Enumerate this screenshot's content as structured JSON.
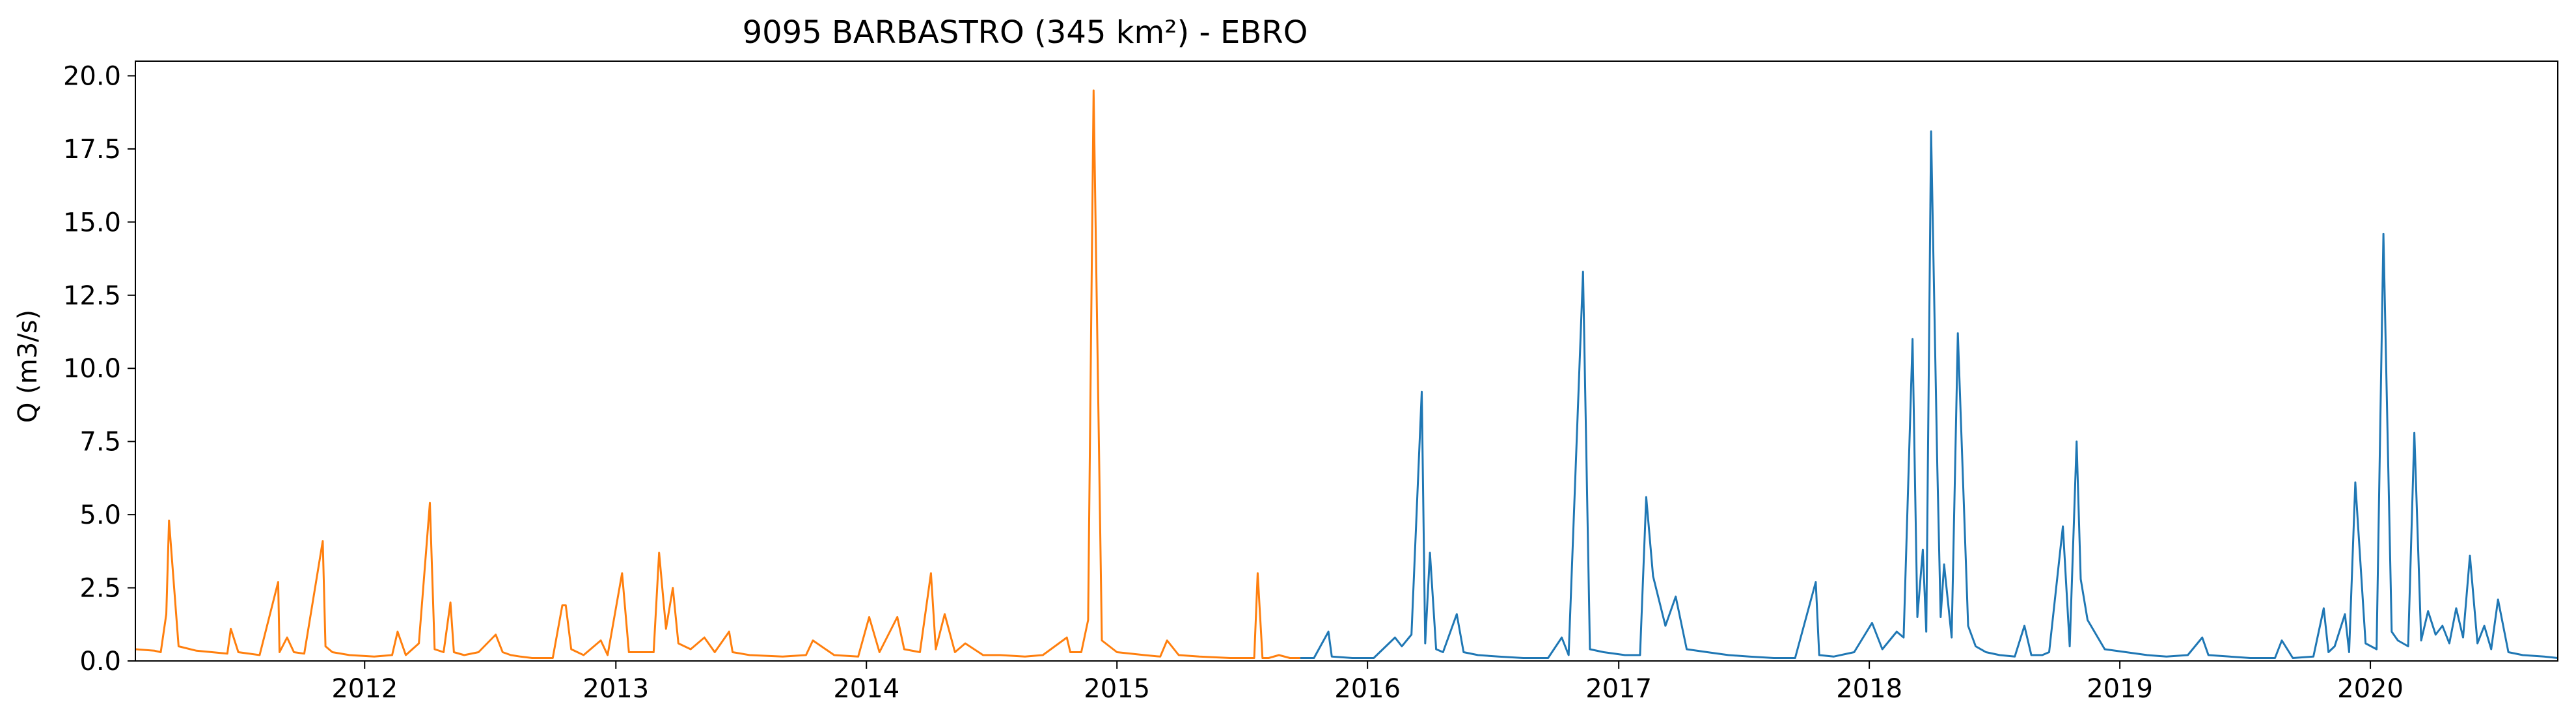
{
  "chart_data": {
    "type": "line",
    "title": "9095 BARBASTRO (345 km²) - EBRO",
    "xlabel": "",
    "ylabel": "Q (m3/s)",
    "xlim": [
      "2011-02-01",
      "2020-09-30"
    ],
    "ylim": [
      0,
      20.5
    ],
    "grid": false,
    "legend": "none",
    "x_ticks": [
      "2012",
      "2013",
      "2014",
      "2015",
      "2016",
      "2017",
      "2018",
      "2019",
      "2020"
    ],
    "y_ticks": [
      "0.0",
      "2.5",
      "5.0",
      "7.5",
      "10.0",
      "12.5",
      "15.0",
      "17.5",
      "20.0"
    ],
    "series": [
      {
        "color": "#ff7f0e",
        "x": [
          "2011-02-01",
          "2011-03-01",
          "2011-03-10",
          "2011-03-18",
          "2011-03-22",
          "2011-04-05",
          "2011-05-01",
          "2011-06-15",
          "2011-06-20",
          "2011-07-01",
          "2011-08-01",
          "2011-08-28",
          "2011-08-30",
          "2011-09-10",
          "2011-09-20",
          "2011-10-05",
          "2011-11-01",
          "2011-11-05",
          "2011-11-15",
          "2011-12-10",
          "2012-01-15",
          "2012-02-10",
          "2012-02-18",
          "2012-03-01",
          "2012-03-20",
          "2012-04-05",
          "2012-04-12",
          "2012-04-25",
          "2012-05-05",
          "2012-05-10",
          "2012-05-25",
          "2012-06-15",
          "2012-07-10",
          "2012-07-20",
          "2012-08-01",
          "2012-08-15",
          "2012-09-01",
          "2012-10-01",
          "2012-10-15",
          "2012-10-20",
          "2012-10-28",
          "2012-11-15",
          "2012-12-10",
          "2012-12-20",
          "2013-01-10",
          "2013-01-20",
          "2013-02-10",
          "2013-02-25",
          "2013-03-05",
          "2013-03-15",
          "2013-03-25",
          "2013-04-02",
          "2013-04-20",
          "2013-05-10",
          "2013-05-25",
          "2013-06-15",
          "2013-06-20",
          "2013-07-15",
          "2013-09-01",
          "2013-10-05",
          "2013-10-15",
          "2013-11-15",
          "2013-12-20",
          "2014-01-05",
          "2014-01-20",
          "2014-02-15",
          "2014-02-25",
          "2014-03-20",
          "2014-04-05",
          "2014-04-12",
          "2014-04-25",
          "2014-05-10",
          "2014-05-25",
          "2014-06-20",
          "2014-07-15",
          "2014-08-20",
          "2014-09-15",
          "2014-10-20",
          "2014-10-25",
          "2014-11-10",
          "2014-11-20",
          "2014-11-28",
          "2014-12-10",
          "2015-01-01",
          "2015-02-10",
          "2015-03-05",
          "2015-03-15",
          "2015-04-01",
          "2015-05-01",
          "2015-06-15",
          "2015-07-20",
          "2015-07-25",
          "2015-08-01",
          "2015-08-10",
          "2015-08-25",
          "2015-09-10",
          "2015-09-25"
        ],
        "y": [
          0.4,
          0.35,
          0.3,
          1.6,
          4.8,
          0.5,
          0.35,
          0.25,
          1.1,
          0.3,
          0.2,
          2.7,
          0.3,
          0.8,
          0.3,
          0.25,
          4.1,
          0.5,
          0.3,
          0.2,
          0.15,
          0.2,
          1.0,
          0.2,
          0.6,
          5.4,
          0.4,
          0.3,
          2.0,
          0.3,
          0.2,
          0.3,
          0.9,
          0.3,
          0.2,
          0.15,
          0.1,
          0.1,
          1.9,
          1.9,
          0.4,
          0.2,
          0.7,
          0.2,
          3.0,
          0.3,
          0.3,
          0.3,
          3.7,
          1.1,
          2.5,
          0.6,
          0.4,
          0.8,
          0.3,
          1.0,
          0.3,
          0.2,
          0.15,
          0.2,
          0.7,
          0.2,
          0.15,
          1.5,
          0.3,
          1.5,
          0.4,
          0.3,
          3.0,
          0.4,
          1.6,
          0.3,
          0.6,
          0.2,
          0.2,
          0.15,
          0.2,
          0.8,
          0.3,
          0.3,
          1.4,
          19.5,
          0.7,
          0.3,
          0.2,
          0.15,
          0.7,
          0.2,
          0.15,
          0.1,
          0.1,
          3.0,
          0.1,
          0.1,
          0.2,
          0.1,
          0.1
        ]
      },
      {
        "color": "#1f77b4",
        "x": [
          "2015-09-25",
          "2015-10-15",
          "2015-11-05",
          "2015-11-10",
          "2015-12-10",
          "2016-01-10",
          "2016-02-10",
          "2016-02-20",
          "2016-03-05",
          "2016-03-20",
          "2016-03-25",
          "2016-04-01",
          "2016-04-10",
          "2016-04-20",
          "2016-05-10",
          "2016-05-20",
          "2016-06-10",
          "2016-07-10",
          "2016-08-15",
          "2016-09-20",
          "2016-10-10",
          "2016-10-20",
          "2016-11-10",
          "2016-11-20",
          "2016-12-10",
          "2017-01-10",
          "2017-02-01",
          "2017-02-10",
          "2017-02-20",
          "2017-03-10",
          "2017-03-25",
          "2017-04-10",
          "2017-05-10",
          "2017-06-10",
          "2017-07-10",
          "2017-08-15",
          "2017-09-15",
          "2017-10-15",
          "2017-10-20",
          "2017-11-10",
          "2017-12-10",
          "2018-01-05",
          "2018-01-20",
          "2018-02-10",
          "2018-02-20",
          "2018-03-05",
          "2018-03-12",
          "2018-03-20",
          "2018-03-25",
          "2018-04-01",
          "2018-04-10",
          "2018-04-15",
          "2018-04-20",
          "2018-05-01",
          "2018-05-10",
          "2018-05-25",
          "2018-06-05",
          "2018-06-20",
          "2018-07-10",
          "2018-08-01",
          "2018-08-15",
          "2018-08-25",
          "2018-09-10",
          "2018-09-20",
          "2018-10-10",
          "2018-10-20",
          "2018-10-30",
          "2018-11-05",
          "2018-11-15",
          "2018-12-10",
          "2019-01-10",
          "2019-02-10",
          "2019-03-10",
          "2019-04-10",
          "2019-05-01",
          "2019-05-10",
          "2019-06-10",
          "2019-07-10",
          "2019-08-15",
          "2019-08-25",
          "2019-09-10",
          "2019-10-10",
          "2019-10-25",
          "2019-11-01",
          "2019-11-10",
          "2019-11-25",
          "2019-12-01",
          "2019-12-10",
          "2019-12-25",
          "2020-01-10",
          "2020-01-20",
          "2020-02-01",
          "2020-02-10",
          "2020-02-25",
          "2020-03-05",
          "2020-03-15",
          "2020-03-25",
          "2020-04-05",
          "2020-04-15",
          "2020-04-25",
          "2020-05-05",
          "2020-05-15",
          "2020-05-25",
          "2020-06-05",
          "2020-06-15",
          "2020-06-25",
          "2020-07-05",
          "2020-07-20",
          "2020-08-10",
          "2020-09-10",
          "2020-09-30"
        ],
        "y": [
          0.1,
          0.1,
          1.0,
          0.15,
          0.1,
          0.1,
          0.8,
          0.5,
          0.9,
          9.2,
          0.6,
          3.7,
          0.4,
          0.3,
          1.6,
          0.3,
          0.2,
          0.15,
          0.1,
          0.1,
          0.8,
          0.2,
          13.3,
          0.4,
          0.3,
          0.2,
          0.2,
          5.6,
          2.9,
          1.2,
          2.2,
          0.4,
          0.3,
          0.2,
          0.15,
          0.1,
          0.1,
          2.7,
          0.2,
          0.15,
          0.3,
          1.3,
          0.4,
          1.0,
          0.8,
          11.0,
          1.5,
          3.8,
          1.0,
          18.1,
          6.7,
          1.5,
          3.3,
          0.8,
          11.2,
          1.2,
          0.5,
          0.3,
          0.2,
          0.15,
          1.2,
          0.2,
          0.2,
          0.3,
          4.6,
          0.5,
          7.5,
          2.8,
          1.4,
          0.4,
          0.3,
          0.2,
          0.15,
          0.2,
          0.8,
          0.2,
          0.15,
          0.1,
          0.1,
          0.7,
          0.1,
          0.15,
          1.8,
          0.3,
          0.5,
          1.6,
          0.3,
          6.1,
          0.6,
          0.4,
          14.6,
          1.0,
          0.7,
          0.5,
          7.8,
          0.7,
          1.7,
          0.9,
          1.2,
          0.6,
          1.8,
          0.8,
          3.6,
          0.6,
          1.2,
          0.4,
          2.1,
          0.3,
          0.2,
          0.15,
          0.1
        ]
      }
    ]
  }
}
